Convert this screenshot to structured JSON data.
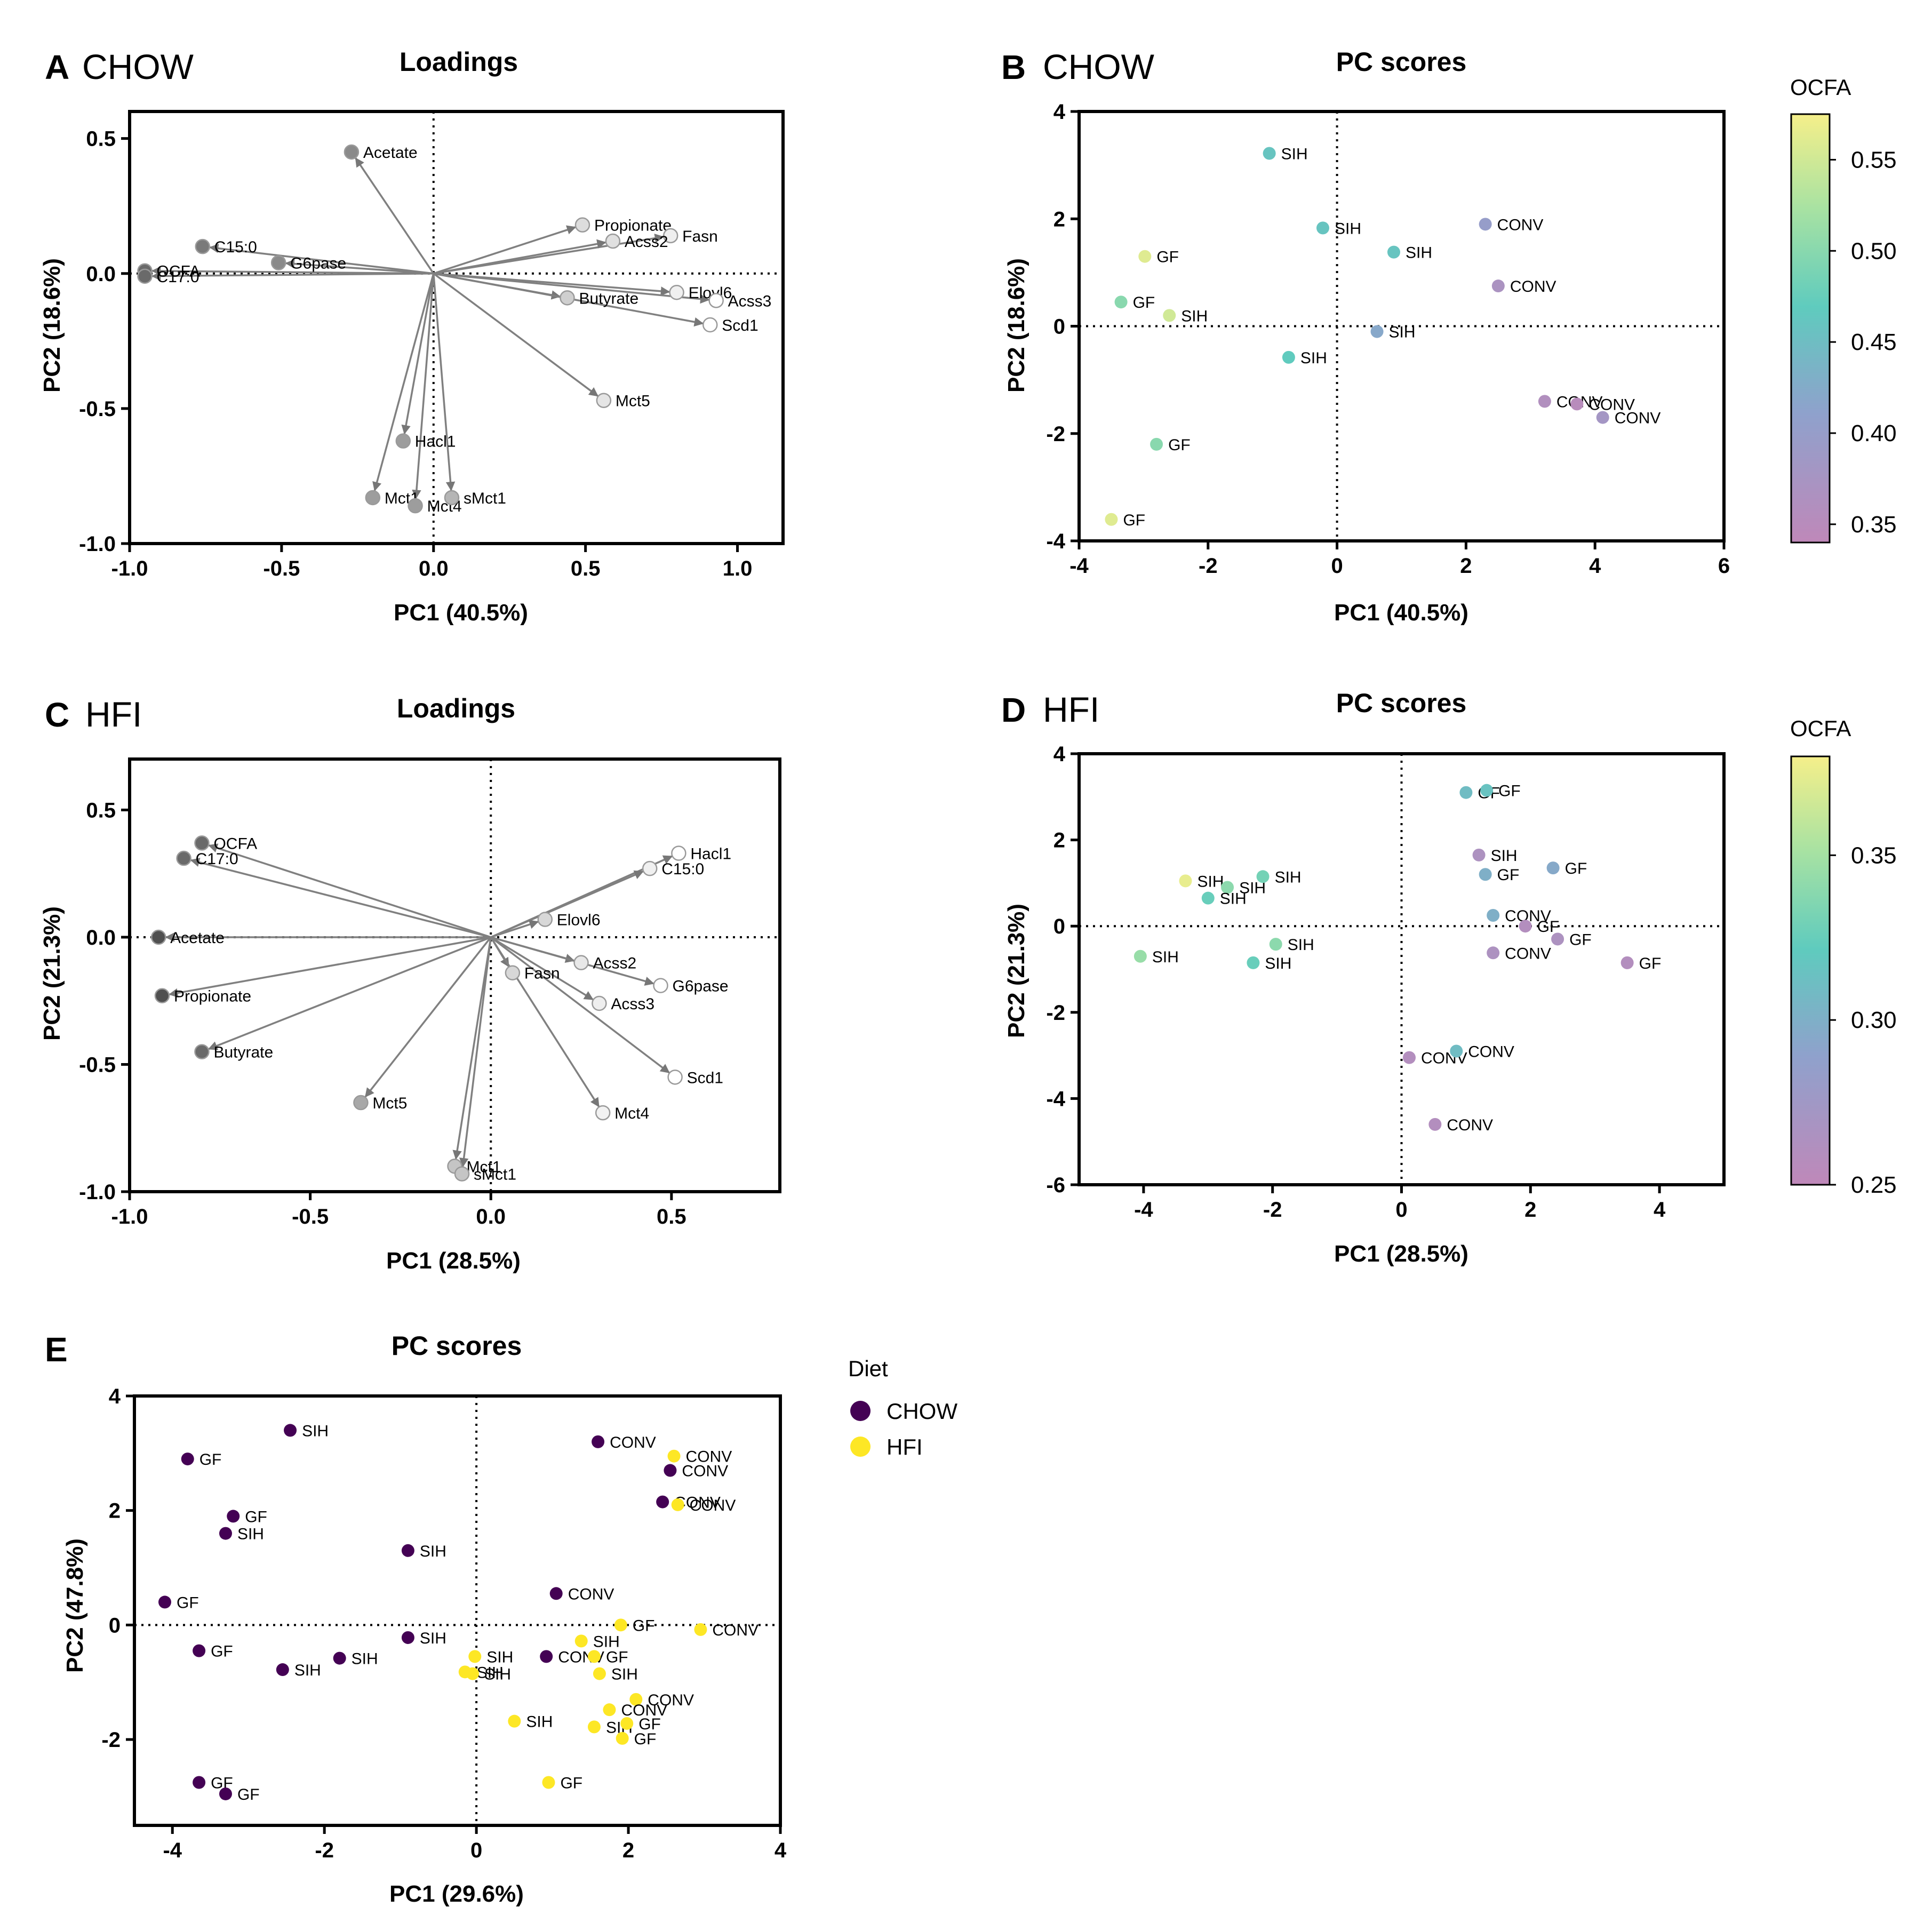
{
  "chart_data": [
    {
      "id": "A",
      "type": "scatter",
      "subtype": "loadings",
      "panel_letter": "A",
      "diet": "CHOW",
      "title": "Loadings",
      "xlabel": "PC1 (40.5%)",
      "ylabel": "PC2 (18.6%)",
      "xlim": [
        -1.0,
        1.15
      ],
      "ylim": [
        -1.0,
        0.6
      ],
      "xticks": [
        -1.0,
        -0.5,
        0.0,
        0.5,
        1.0
      ],
      "yticks": [
        -1.0,
        -0.5,
        0.0,
        0.5
      ],
      "xtick_labels": [
        "-1.0",
        "-0.5",
        "0.0",
        "0.5",
        "1.0"
      ],
      "ytick_labels": [
        "-1.0",
        "-0.5",
        "0.0",
        "0.5"
      ],
      "points": [
        {
          "label": "Acetate",
          "x": -0.27,
          "y": 0.45,
          "color": "#8a8a8a"
        },
        {
          "label": "Propionate",
          "x": 0.49,
          "y": 0.18,
          "color": "#dddddd"
        },
        {
          "label": "Fasn",
          "x": 0.78,
          "y": 0.14,
          "color": "#efefef"
        },
        {
          "label": "Acss2",
          "x": 0.59,
          "y": 0.12,
          "color": "#e0e0e0"
        },
        {
          "label": "C15:0",
          "x": -0.76,
          "y": 0.1,
          "color": "#7a7a7a"
        },
        {
          "label": "G6pase",
          "x": -0.51,
          "y": 0.04,
          "color": "#8a8a8a"
        },
        {
          "label": "OCFA",
          "x": -0.95,
          "y": 0.01,
          "color": "#6a6a6a"
        },
        {
          "label": "C17:0",
          "x": -0.95,
          "y": -0.01,
          "color": "#6a6a6a"
        },
        {
          "label": "Elovl6",
          "x": 0.8,
          "y": -0.07,
          "color": "#f0f0f0"
        },
        {
          "label": "Acss3",
          "x": 0.93,
          "y": -0.1,
          "color": "#ffffff"
        },
        {
          "label": "Butyrate",
          "x": 0.44,
          "y": -0.09,
          "color": "#cfcfcf"
        },
        {
          "label": "Scd1",
          "x": 0.91,
          "y": -0.19,
          "color": "#ffffff"
        },
        {
          "label": "Mct5",
          "x": 0.56,
          "y": -0.47,
          "color": "#e5e5e5"
        },
        {
          "label": "Hacl1",
          "x": -0.1,
          "y": -0.62,
          "color": "#9d9d9d"
        },
        {
          "label": "Mct1",
          "x": -0.2,
          "y": -0.83,
          "color": "#9d9d9d"
        },
        {
          "label": "Mct4",
          "x": -0.06,
          "y": -0.86,
          "color": "#9d9d9d"
        },
        {
          "label": "sMct1",
          "x": 0.06,
          "y": -0.83,
          "color": "#b5b5b5"
        }
      ]
    },
    {
      "id": "B",
      "type": "scatter",
      "subtype": "scores",
      "panel_letter": "B",
      "diet": "CHOW",
      "title": "PC scores",
      "xlabel": "PC1 (40.5%)",
      "ylabel": "PC2 (18.6%)",
      "xlim": [
        -4,
        6
      ],
      "ylim": [
        -4,
        4
      ],
      "xticks": [
        -4,
        -2,
        0,
        2,
        4,
        6
      ],
      "yticks": [
        -4,
        -2,
        0,
        2,
        4
      ],
      "xtick_labels": [
        "-4",
        "-2",
        "0",
        "2",
        "4",
        "6"
      ],
      "ytick_labels": [
        "-4",
        "-2",
        "0",
        "2",
        "4"
      ],
      "colorbar": {
        "title": "OCFA",
        "min": 0.34,
        "max": 0.575,
        "ticks": [
          0.35,
          0.4,
          0.45,
          0.5,
          0.55
        ],
        "tick_labels": [
          "0.35",
          "0.40",
          "0.45",
          "0.50",
          "0.55"
        ]
      },
      "points": [
        {
          "label": "SIH",
          "x": -1.05,
          "y": 3.22,
          "value": 0.46
        },
        {
          "label": "SIH",
          "x": -0.22,
          "y": 1.83,
          "value": 0.46
        },
        {
          "label": "SIH",
          "x": 0.88,
          "y": 1.38,
          "value": 0.46
        },
        {
          "label": "CONV",
          "x": 2.3,
          "y": 1.9,
          "value": 0.4
        },
        {
          "label": "CONV",
          "x": 2.5,
          "y": 0.75,
          "value": 0.37
        },
        {
          "label": "GF",
          "x": -2.98,
          "y": 1.3,
          "value": 0.56
        },
        {
          "label": "GF",
          "x": -3.35,
          "y": 0.45,
          "value": 0.5
        },
        {
          "label": "SIH",
          "x": -2.6,
          "y": 0.2,
          "value": 0.55
        },
        {
          "label": "SIH",
          "x": 0.62,
          "y": -0.1,
          "value": 0.42
        },
        {
          "label": "SIH",
          "x": -0.75,
          "y": -0.58,
          "value": 0.47
        },
        {
          "label": "CONV",
          "x": 3.22,
          "y": -1.4,
          "value": 0.36
        },
        {
          "label": "CONV",
          "x": 3.72,
          "y": -1.45,
          "value": 0.35
        },
        {
          "label": "CONV",
          "x": 4.12,
          "y": -1.7,
          "value": 0.38
        },
        {
          "label": "GF",
          "x": -2.8,
          "y": -2.2,
          "value": 0.5
        },
        {
          "label": "GF",
          "x": -3.5,
          "y": -3.6,
          "value": 0.56
        }
      ]
    },
    {
      "id": "C",
      "type": "scatter",
      "subtype": "loadings",
      "panel_letter": "C",
      "diet": "HFI",
      "title": "Loadings",
      "xlabel": "PC1 (28.5%)",
      "ylabel": "PC2 (21.3%)",
      "xlim": [
        -1.0,
        0.8
      ],
      "ylim": [
        -1.0,
        0.7
      ],
      "xticks": [
        -1.0,
        -0.5,
        0.0,
        0.5
      ],
      "yticks": [
        -1.0,
        -0.5,
        0.0,
        0.5
      ],
      "xtick_labels": [
        "-1.0",
        "-0.5",
        "0.0",
        "0.5"
      ],
      "ytick_labels": [
        "-1.0",
        "-0.5",
        "0.0",
        "0.5"
      ],
      "points": [
        {
          "label": "OCFA",
          "x": -0.8,
          "y": 0.37,
          "color": "#6a6a6a"
        },
        {
          "label": "C17:0",
          "x": -0.85,
          "y": 0.31,
          "color": "#6a6a6a"
        },
        {
          "label": "Acetate",
          "x": -0.92,
          "y": 0.0,
          "color": "#505050"
        },
        {
          "label": "Propionate",
          "x": -0.91,
          "y": -0.23,
          "color": "#505050"
        },
        {
          "label": "Butyrate",
          "x": -0.8,
          "y": -0.45,
          "color": "#6a6a6a"
        },
        {
          "label": "Mct5",
          "x": -0.36,
          "y": -0.65,
          "color": "#a8a8a8"
        },
        {
          "label": "Mct1",
          "x": -0.1,
          "y": -0.9,
          "color": "#c5c5c5"
        },
        {
          "label": "sMct1",
          "x": -0.08,
          "y": -0.93,
          "color": "#c5c5c5"
        },
        {
          "label": "Hacl1",
          "x": 0.52,
          "y": 0.33,
          "color": "#ffffff"
        },
        {
          "label": "C15:0",
          "x": 0.44,
          "y": 0.27,
          "color": "#f0f0f0"
        },
        {
          "label": "Elovl6",
          "x": 0.15,
          "y": 0.07,
          "color": "#d8d8d8"
        },
        {
          "label": "Acss2",
          "x": 0.25,
          "y": -0.1,
          "color": "#e8e8e8"
        },
        {
          "label": "Fasn",
          "x": 0.06,
          "y": -0.14,
          "color": "#d8d8d8"
        },
        {
          "label": "G6pase",
          "x": 0.47,
          "y": -0.19,
          "color": "#ffffff"
        },
        {
          "label": "Acss3",
          "x": 0.3,
          "y": -0.26,
          "color": "#eeeeee"
        },
        {
          "label": "Scd1",
          "x": 0.51,
          "y": -0.55,
          "color": "#ffffff"
        },
        {
          "label": "Mct4",
          "x": 0.31,
          "y": -0.69,
          "color": "#f2f2f2"
        }
      ]
    },
    {
      "id": "D",
      "type": "scatter",
      "subtype": "scores",
      "panel_letter": "D",
      "diet": "HFI",
      "title": "PC scores",
      "xlabel": "PC1 (28.5%)",
      "ylabel": "PC2 (21.3%)",
      "xlim": [
        -5,
        5
      ],
      "ylim": [
        -6,
        4
      ],
      "xticks": [
        -4,
        -2,
        0,
        2,
        4
      ],
      "yticks": [
        -6,
        -4,
        -2,
        0,
        2,
        4
      ],
      "xtick_labels": [
        "-4",
        "-2",
        "0",
        "2",
        "4"
      ],
      "ytick_labels": [
        "-6",
        "-4",
        "-2",
        "0",
        "2",
        "4"
      ],
      "colorbar": {
        "title": "OCFA",
        "min": 0.25,
        "max": 0.38,
        "ticks": [
          0.25,
          0.3,
          0.35
        ],
        "tick_labels": [
          "0.25",
          "0.30",
          "0.35"
        ]
      },
      "points": [
        {
          "label": "GF",
          "x": 1.0,
          "y": 3.1,
          "value": 0.31
        },
        {
          "label": "GF",
          "x": 1.32,
          "y": 3.15,
          "value": 0.315
        },
        {
          "label": "SIH",
          "x": 1.2,
          "y": 1.65,
          "value": 0.265
        },
        {
          "label": "GF",
          "x": 2.35,
          "y": 1.35,
          "value": 0.295
        },
        {
          "label": "GF",
          "x": 1.3,
          "y": 1.2,
          "value": 0.3
        },
        {
          "label": "CONV",
          "x": 1.42,
          "y": 0.25,
          "value": 0.3
        },
        {
          "label": "GF",
          "x": 1.92,
          "y": 0.0,
          "value": 0.26
        },
        {
          "label": "GF",
          "x": 2.42,
          "y": -0.3,
          "value": 0.265
        },
        {
          "label": "CONV",
          "x": 1.42,
          "y": -0.62,
          "value": 0.265
        },
        {
          "label": "GF",
          "x": 3.5,
          "y": -0.85,
          "value": 0.26
        },
        {
          "label": "SIH",
          "x": -3.35,
          "y": 1.05,
          "value": 0.375
        },
        {
          "label": "SIH",
          "x": -2.7,
          "y": 0.9,
          "value": 0.34
        },
        {
          "label": "SIH",
          "x": -2.15,
          "y": 1.15,
          "value": 0.33
        },
        {
          "label": "SIH",
          "x": -3.0,
          "y": 0.65,
          "value": 0.325
        },
        {
          "label": "SIH",
          "x": -4.05,
          "y": -0.7,
          "value": 0.345
        },
        {
          "label": "SIH",
          "x": -1.95,
          "y": -0.42,
          "value": 0.34
        },
        {
          "label": "SIH",
          "x": -2.3,
          "y": -0.85,
          "value": 0.325
        },
        {
          "label": "CONV",
          "x": 0.12,
          "y": -3.05,
          "value": 0.26
        },
        {
          "label": "CONV",
          "x": 0.85,
          "y": -2.9,
          "value": 0.31
        },
        {
          "label": "CONV",
          "x": 0.52,
          "y": -4.6,
          "value": 0.26
        }
      ]
    },
    {
      "id": "E",
      "type": "scatter",
      "subtype": "scores",
      "panel_letter": "E",
      "title": "PC scores",
      "xlabel": "PC1 (29.6%)",
      "ylabel": "PC2 (47.8%)",
      "xlim": [
        -4.5,
        4
      ],
      "ylim": [
        -3.5,
        4
      ],
      "xticks": [
        -4,
        -2,
        0,
        2,
        4
      ],
      "yticks": [
        -2,
        0,
        2,
        4
      ],
      "xtick_labels": [
        "-4",
        "-2",
        "0",
        "2",
        "4"
      ],
      "ytick_labels": [
        "-2",
        "0",
        "2",
        "4"
      ],
      "legend": {
        "title": "Diet",
        "position": "right",
        "entries": [
          {
            "label": "CHOW",
            "color": "#440154"
          },
          {
            "label": "HFI",
            "color": "#fde725"
          }
        ]
      },
      "series": [
        {
          "name": "CHOW",
          "color": "#440154",
          "points": [
            {
              "label": "SIH",
              "x": -2.45,
              "y": 3.4
            },
            {
              "label": "GF",
              "x": -3.8,
              "y": 2.9
            },
            {
              "label": "GF",
              "x": -3.2,
              "y": 1.9
            },
            {
              "label": "SIH",
              "x": -3.3,
              "y": 1.6
            },
            {
              "label": "SIH",
              "x": -0.9,
              "y": 1.3
            },
            {
              "label": "GF",
              "x": -4.1,
              "y": 0.4
            },
            {
              "label": "GF",
              "x": -3.65,
              "y": -0.45
            },
            {
              "label": "SIH",
              "x": -0.9,
              "y": -0.22
            },
            {
              "label": "SIH",
              "x": -1.8,
              "y": -0.58
            },
            {
              "label": "SIH",
              "x": -2.55,
              "y": -0.78
            },
            {
              "label": "GF",
              "x": -3.65,
              "y": -2.75
            },
            {
              "label": "GF",
              "x": -3.3,
              "y": -2.95
            },
            {
              "label": "CONV",
              "x": 1.6,
              "y": 3.2
            },
            {
              "label": "CONV",
              "x": 2.55,
              "y": 2.7
            },
            {
              "label": "CONV",
              "x": 2.45,
              "y": 2.15
            },
            {
              "label": "CONV",
              "x": 1.05,
              "y": 0.55
            },
            {
              "label": "CONV",
              "x": 0.92,
              "y": -0.55
            }
          ]
        },
        {
          "name": "HFI",
          "color": "#fde725",
          "points": [
            {
              "label": "CONV",
              "x": 2.6,
              "y": 2.95
            },
            {
              "label": "CONV",
              "x": 2.65,
              "y": 2.1
            },
            {
              "label": "GF",
              "x": 1.9,
              "y": 0.0
            },
            {
              "label": "CONV",
              "x": 2.95,
              "y": -0.08
            },
            {
              "label": "SIH",
              "x": 1.38,
              "y": -0.28
            },
            {
              "label": "GF",
              "x": 1.55,
              "y": -0.55
            },
            {
              "label": "SIH",
              "x": -0.02,
              "y": -0.55
            },
            {
              "label": "SIH",
              "x": -0.15,
              "y": -0.82
            },
            {
              "label": "SIH",
              "x": -0.05,
              "y": -0.85
            },
            {
              "label": "SIH",
              "x": 1.62,
              "y": -0.85
            },
            {
              "label": "CONV",
              "x": 2.1,
              "y": -1.3
            },
            {
              "label": "CONV",
              "x": 1.75,
              "y": -1.48
            },
            {
              "label": "SIH",
              "x": 0.5,
              "y": -1.68
            },
            {
              "label": "SIH",
              "x": 1.55,
              "y": -1.78
            },
            {
              "label": "GF",
              "x": 1.98,
              "y": -1.72
            },
            {
              "label": "GF",
              "x": 1.92,
              "y": -1.98
            },
            {
              "label": "GF",
              "x": 0.95,
              "y": -2.75
            }
          ]
        }
      ]
    }
  ]
}
